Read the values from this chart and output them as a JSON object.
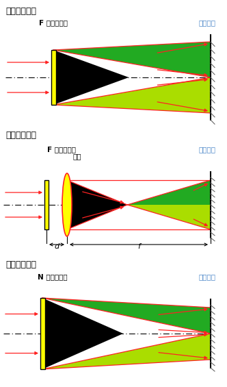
{
  "fig_width": 3.32,
  "fig_height": 5.65,
  "bg_color": "#ffffff",
  "title1": "工作模式一：",
  "title2": "工作模式二：",
  "title3": "工作模式三：",
  "label_F": "F 系列分束器",
  "label_N": "N 系列分束器",
  "label_lens": "透镜",
  "label_surface": "工件表面",
  "label_d": "d",
  "label_f": "f",
  "text_color": "#4a86c8",
  "text_color_black": "#000000",
  "green_dark": "#22aa22",
  "green_light": "#aadd00",
  "black": "#000000",
  "yellow": "#ffff00",
  "red": "#ff2222",
  "wall_color": "#666666"
}
